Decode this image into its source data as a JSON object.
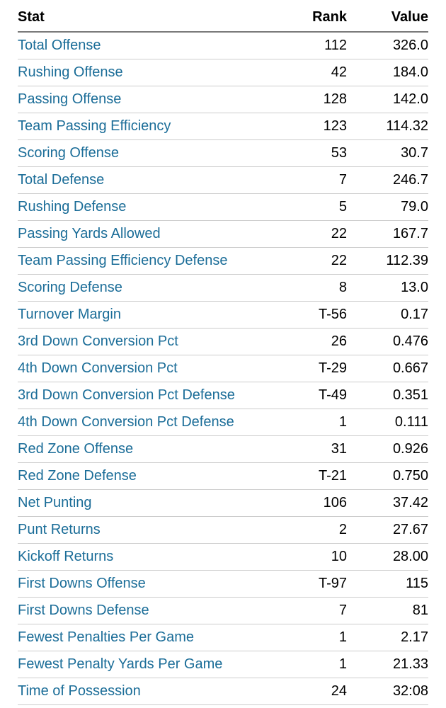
{
  "colors": {
    "link_blue": "#1b6d98",
    "header_border": "#7a7a7a",
    "row_border": "#cccccc",
    "text": "#000000",
    "background": "#ffffff"
  },
  "table": {
    "columns": [
      {
        "label": "Stat"
      },
      {
        "label": "Rank"
      },
      {
        "label": "Value"
      }
    ],
    "rows": [
      {
        "stat": "Total Offense",
        "rank": "112",
        "value": "326.0"
      },
      {
        "stat": "Rushing Offense",
        "rank": "42",
        "value": "184.0"
      },
      {
        "stat": "Passing Offense",
        "rank": "128",
        "value": "142.0"
      },
      {
        "stat": "Team Passing Efficiency",
        "rank": "123",
        "value": "114.32"
      },
      {
        "stat": "Scoring Offense",
        "rank": "53",
        "value": "30.7"
      },
      {
        "stat": "Total Defense",
        "rank": "7",
        "value": "246.7"
      },
      {
        "stat": "Rushing Defense",
        "rank": "5",
        "value": "79.0"
      },
      {
        "stat": "Passing Yards Allowed",
        "rank": "22",
        "value": "167.7"
      },
      {
        "stat": "Team Passing Efficiency Defense",
        "rank": "22",
        "value": "112.39"
      },
      {
        "stat": "Scoring Defense",
        "rank": "8",
        "value": "13.0"
      },
      {
        "stat": "Turnover Margin",
        "rank": "T-56",
        "value": "0.17"
      },
      {
        "stat": "3rd Down Conversion Pct",
        "rank": "26",
        "value": "0.476"
      },
      {
        "stat": "4th Down Conversion Pct",
        "rank": "T-29",
        "value": "0.667"
      },
      {
        "stat": "3rd Down Conversion Pct Defense",
        "rank": "T-49",
        "value": "0.351"
      },
      {
        "stat": "4th Down Conversion Pct Defense",
        "rank": "1",
        "value": "0.111"
      },
      {
        "stat": "Red Zone Offense",
        "rank": "31",
        "value": "0.926"
      },
      {
        "stat": "Red Zone Defense",
        "rank": "T-21",
        "value": "0.750"
      },
      {
        "stat": "Net Punting",
        "rank": "106",
        "value": "37.42"
      },
      {
        "stat": "Punt Returns",
        "rank": "2",
        "value": "27.67"
      },
      {
        "stat": "Kickoff Returns",
        "rank": "10",
        "value": "28.00"
      },
      {
        "stat": "First Downs Offense",
        "rank": "T-97",
        "value": "115"
      },
      {
        "stat": "First Downs Defense",
        "rank": "7",
        "value": "81"
      },
      {
        "stat": "Fewest Penalties Per Game",
        "rank": "1",
        "value": "2.17"
      },
      {
        "stat": "Fewest Penalty Yards Per Game",
        "rank": "1",
        "value": "21.33"
      },
      {
        "stat": "Time of Possession",
        "rank": "24",
        "value": "32:08"
      }
    ]
  }
}
